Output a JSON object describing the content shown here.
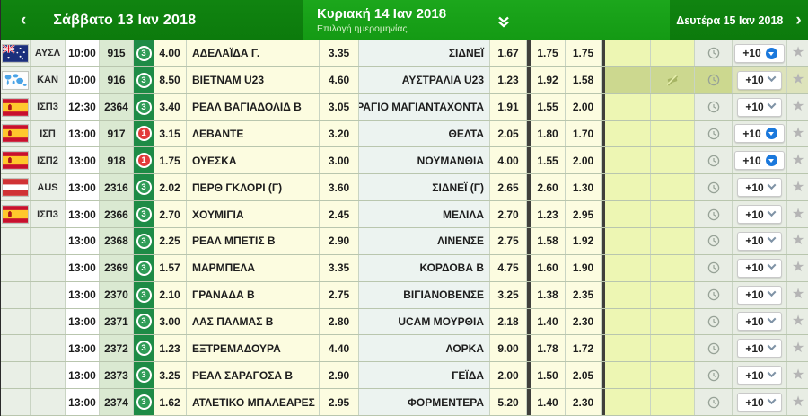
{
  "header": {
    "prev_day": "Σάββατο 13 Ιαν 2018",
    "prev_arrow": "‹",
    "current_day": "Κυριακή 14 Ιαν 2018",
    "current_sub": "Επιλογή ημερομηνίας",
    "next_day": "Δευτέρα 15 Ιαν 2018",
    "next_arrow": "›"
  },
  "controls": {
    "more_label": "+10",
    "favorite_glyph": "★"
  },
  "colors": {
    "header_green": "#17A017",
    "header_green_dark": "#0C7A0C",
    "badge_green": "#2F9C57",
    "badge_red": "#E23B3B",
    "more_blue": "#1A78DC",
    "odds_bg": "#FCFCE0",
    "highlight_olive": "#CCD88F"
  },
  "rows": [
    {
      "flag": "australia",
      "league": "ΑΥΣΛ",
      "time": "10:00",
      "id": "915",
      "markets": "3",
      "badge": "green",
      "odds_1": "4.00",
      "home": "ΑΔΕΛΑΪΔΑ Γ.",
      "odds_x": "3.35",
      "away": "ΣΙΔΝΕΪ",
      "odds_2": "1.67",
      "over": "1.75",
      "under": "1.75",
      "more": "blue",
      "muted": false
    },
    {
      "flag": "world",
      "league": "ΚΑΝ",
      "time": "10:00",
      "id": "916",
      "markets": "3",
      "badge": "green",
      "odds_1": "8.50",
      "home": "ΒΙΕΤΝΑΜ U23",
      "odds_x": "4.60",
      "away": "ΑΥΣΤΡΑΛΙΑ U23",
      "odds_2": "1.23",
      "over": "1.92",
      "under": "1.58",
      "more": "chevron",
      "muted": true
    },
    {
      "flag": "spain",
      "league": "ΙΣΠ3",
      "time": "12:30",
      "id": "2364",
      "markets": "3",
      "badge": "green",
      "odds_1": "3.40",
      "home": "ΡΕΑΛ ΒΑΓΙΑΔΟΛΙΔ Β",
      "odds_x": "3.05",
      "away": "ΡΑΓΙΟ ΜΑΓΙΑΝΤΑΧΟΝΤΑ",
      "odds_2": "1.91",
      "over": "1.55",
      "under": "2.00",
      "more": "chevron",
      "muted": false
    },
    {
      "flag": "spain",
      "league": "ΙΣΠ",
      "time": "13:00",
      "id": "917",
      "markets": "1",
      "badge": "red",
      "odds_1": "3.15",
      "home": "ΛΕΒΑΝΤΕ",
      "odds_x": "3.20",
      "away": "ΘΕΛΤΑ",
      "odds_2": "2.05",
      "over": "1.80",
      "under": "1.70",
      "more": "blue",
      "muted": false
    },
    {
      "flag": "spain",
      "league": "ΙΣΠ2",
      "time": "13:00",
      "id": "918",
      "markets": "1",
      "badge": "red",
      "odds_1": "1.75",
      "home": "ΟΥΕΣΚΑ",
      "odds_x": "3.00",
      "away": "ΝΟΥΜΑΝΘΙΑ",
      "odds_2": "4.00",
      "over": "1.55",
      "under": "2.00",
      "more": "blue",
      "muted": false
    },
    {
      "flag": "austria",
      "league": "AUS",
      "time": "13:00",
      "id": "2316",
      "markets": "3",
      "badge": "green",
      "odds_1": "2.02",
      "home": "ΠΕΡΘ ΓΚΛΟΡΙ (Γ)",
      "odds_x": "3.60",
      "away": "ΣΙΔΝΕΪ (Γ)",
      "odds_2": "2.65",
      "over": "2.60",
      "under": "1.30",
      "more": "chevron",
      "muted": false
    },
    {
      "flag": "spain",
      "league": "ΙΣΠ3",
      "time": "13:00",
      "id": "2366",
      "markets": "3",
      "badge": "green",
      "odds_1": "2.70",
      "home": "ΧΟΥΜΙΓΙΑ",
      "odds_x": "2.45",
      "away": "ΜΕΛΙΛΑ",
      "odds_2": "2.70",
      "over": "1.23",
      "under": "2.95",
      "more": "chevron",
      "muted": false
    },
    {
      "flag": "none",
      "league": "",
      "time": "13:00",
      "id": "2368",
      "markets": "3",
      "badge": "green",
      "odds_1": "2.25",
      "home": "ΡΕΑΛ ΜΠΕΤΙΣ Β",
      "odds_x": "2.90",
      "away": "ΛΙΝΕΝΣΕ",
      "odds_2": "2.75",
      "over": "1.58",
      "under": "1.92",
      "more": "chevron",
      "muted": false
    },
    {
      "flag": "none",
      "league": "",
      "time": "13:00",
      "id": "2369",
      "markets": "3",
      "badge": "green",
      "odds_1": "1.57",
      "home": "ΜΑΡΜΠΕΛΑ",
      "odds_x": "3.35",
      "away": "ΚΟΡΔΟΒΑ Β",
      "odds_2": "4.75",
      "over": "1.60",
      "under": "1.90",
      "more": "chevron",
      "muted": false
    },
    {
      "flag": "none",
      "league": "",
      "time": "13:00",
      "id": "2370",
      "markets": "3",
      "badge": "green",
      "odds_1": "2.10",
      "home": "ΓΡΑΝΑΔΑ Β",
      "odds_x": "2.75",
      "away": "ΒΙΓΙΑΝΟΒΕΝΣΕ",
      "odds_2": "3.25",
      "over": "1.38",
      "under": "2.35",
      "more": "chevron",
      "muted": false
    },
    {
      "flag": "none",
      "league": "",
      "time": "13:00",
      "id": "2371",
      "markets": "3",
      "badge": "green",
      "odds_1": "3.00",
      "home": "ΛΑΣ ΠΑΛΜΑΣ Β",
      "odds_x": "2.80",
      "away": "UCAM ΜΟΥΡΘΙΑ",
      "odds_2": "2.18",
      "over": "1.40",
      "under": "2.30",
      "more": "chevron",
      "muted": false
    },
    {
      "flag": "none",
      "league": "",
      "time": "13:00",
      "id": "2372",
      "markets": "3",
      "badge": "green",
      "odds_1": "1.23",
      "home": "ΕΞΤΡΕΜΑΔΟΥΡΑ",
      "odds_x": "4.40",
      "away": "ΛΟΡΚΑ",
      "odds_2": "9.00",
      "over": "1.78",
      "under": "1.72",
      "more": "chevron",
      "muted": false
    },
    {
      "flag": "none",
      "league": "",
      "time": "13:00",
      "id": "2373",
      "markets": "3",
      "badge": "green",
      "odds_1": "3.25",
      "home": "ΡΕΑΛ ΣΑΡΑΓΟΣΑ Β",
      "odds_x": "2.90",
      "away": "ΓΕΪΔΑ",
      "odds_2": "2.00",
      "over": "1.50",
      "under": "2.05",
      "more": "chevron",
      "muted": false
    },
    {
      "flag": "none",
      "league": "",
      "time": "13:00",
      "id": "2374",
      "markets": "3",
      "badge": "green",
      "odds_1": "1.62",
      "home": "ΑΤΛΕΤΙΚΟ ΜΠΑΛΕΑΡΕΣ",
      "odds_x": "2.95",
      "away": "ΦΟΡΜΕΝΤΕΡΑ",
      "odds_2": "5.20",
      "over": "1.40",
      "under": "2.30",
      "more": "chevron",
      "muted": false
    }
  ]
}
